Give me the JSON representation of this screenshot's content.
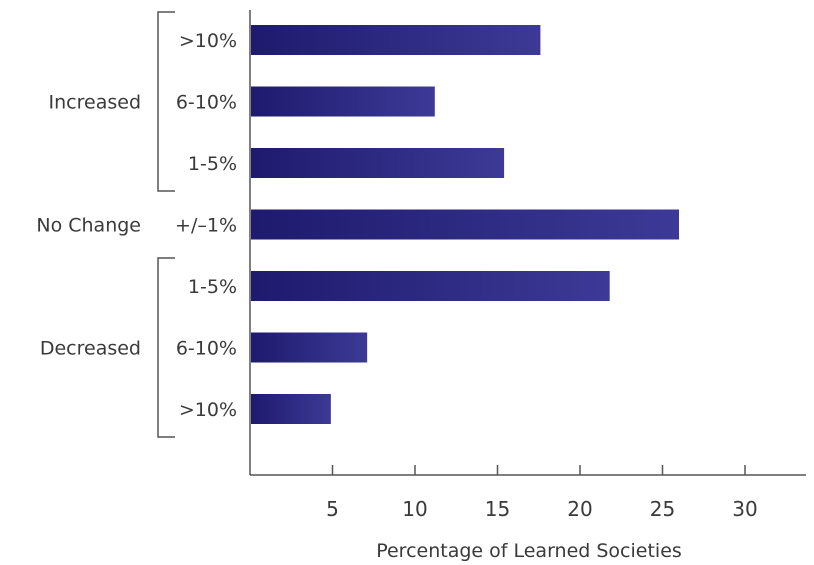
{
  "chart_data": {
    "type": "bar",
    "orientation": "horizontal",
    "categories": [
      ">10%",
      "6-10%",
      "1-5%",
      "+/–1%",
      "1-5%",
      "6-10%",
      ">10%"
    ],
    "groups": [
      {
        "label": "Increased",
        "categories": [
          0,
          1,
          2
        ]
      },
      {
        "label": "No Change",
        "categories": [
          3
        ]
      },
      {
        "label": "Decreased",
        "categories": [
          4,
          5,
          6
        ]
      }
    ],
    "values": [
      17.6,
      11.2,
      15.4,
      26.0,
      21.8,
      7.1,
      4.9
    ],
    "xlabel": "Percentage of Learned Societies",
    "ylabel": "",
    "xlim": [
      0,
      32
    ],
    "xticks": [
      5,
      10,
      15,
      20,
      25,
      30
    ],
    "grid": false,
    "legend": "none",
    "colors": {
      "bar_start": "#1e1a6e",
      "bar_end": "#3c3a96",
      "axis": "#555555",
      "text": "#3a3a3a"
    }
  }
}
